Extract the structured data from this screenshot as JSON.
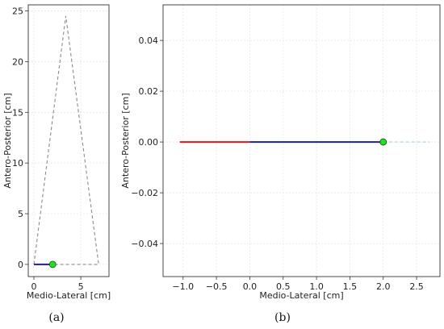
{
  "chart_data": [
    {
      "type": "line",
      "panel_label": "(a)",
      "xlabel": "Medio-Lateral [cm]",
      "ylabel": "Antero-Posterior [cm]",
      "xlim": [
        -0.6,
        8.0
      ],
      "ylim": [
        -1.2,
        25.6
      ],
      "xticks": [
        0,
        5
      ],
      "yticks": [
        0,
        5,
        10,
        15,
        20,
        25
      ],
      "grid": true,
      "series": [
        {
          "style": "dashed",
          "color": "#8a8a8a",
          "x": [
            0.0,
            3.4,
            6.9,
            0.0
          ],
          "y": [
            0.0,
            24.5,
            0.0,
            0.0
          ]
        },
        {
          "style": "solid",
          "color": "#1f1f8f",
          "x": [
            0.0,
            2.0
          ],
          "y": [
            0.0,
            0.0
          ]
        }
      ],
      "marker": {
        "x": 2.0,
        "y": 0.0,
        "color": "#22dd22"
      }
    },
    {
      "type": "line",
      "panel_label": "(b)",
      "xlabel": "Medio-Lateral [cm]",
      "ylabel": "Antero-Posterior [cm]",
      "xlim": [
        -1.3,
        2.85
      ],
      "ylim": [
        -0.053,
        0.054
      ],
      "xticks": [
        -1.0,
        -0.5,
        0.0,
        0.5,
        1.0,
        1.5,
        2.0,
        2.5
      ],
      "yticks": [
        -0.04,
        -0.02,
        0.0,
        0.02,
        0.04
      ],
      "grid": true,
      "series": [
        {
          "style": "solid",
          "color": "#ee1111",
          "x": [
            -1.05,
            0.0
          ],
          "y": [
            0.0,
            0.0
          ]
        },
        {
          "style": "solid",
          "color": "#1f1f8f",
          "x": [
            0.0,
            2.0
          ],
          "y": [
            0.0,
            0.0
          ]
        },
        {
          "style": "dashed",
          "color": "#a8cfe8",
          "x": [
            2.0,
            2.7
          ],
          "y": [
            0.0,
            0.0
          ]
        }
      ],
      "marker": {
        "x": 2.0,
        "y": 0.0,
        "color": "#22dd22"
      }
    }
  ]
}
